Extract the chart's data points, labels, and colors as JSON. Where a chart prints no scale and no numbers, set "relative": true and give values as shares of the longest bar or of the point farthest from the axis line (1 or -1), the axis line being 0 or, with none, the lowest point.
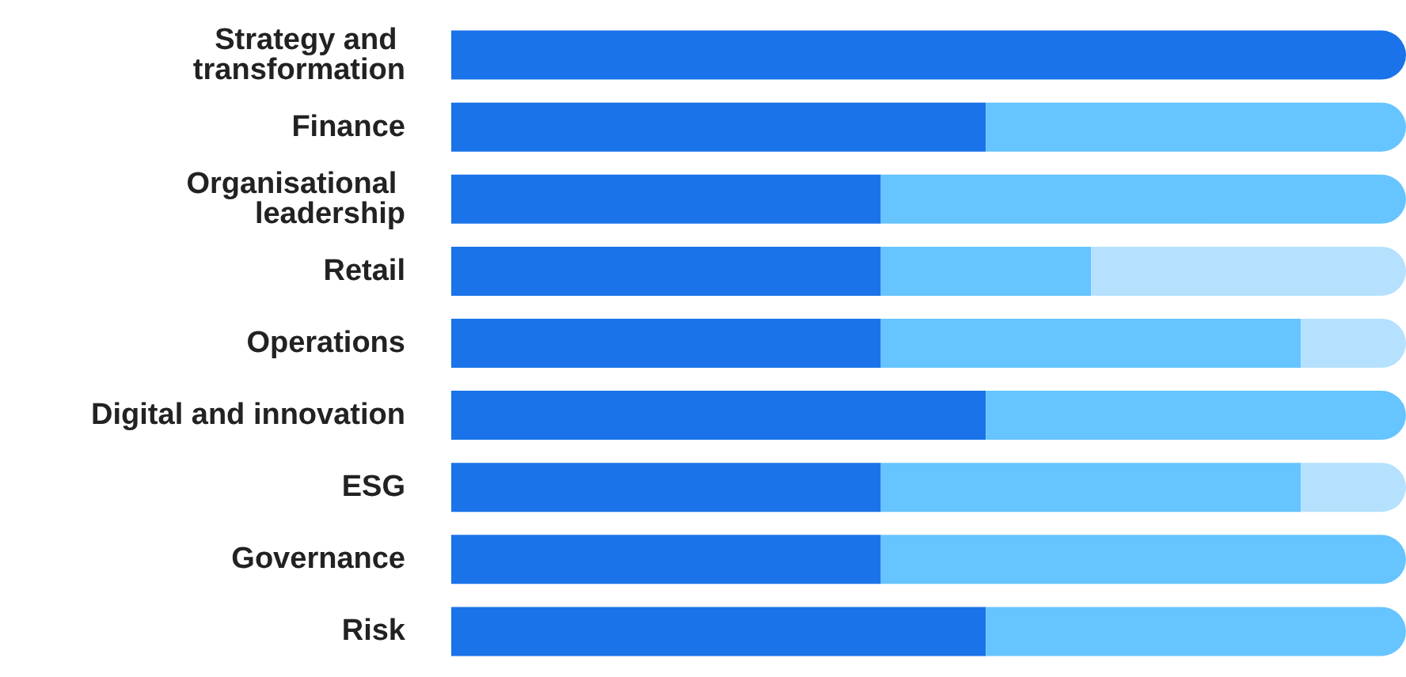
{
  "chart_data": {
    "type": "bar",
    "orientation": "horizontal",
    "stacked": true,
    "relative": true,
    "categories": [
      "Strategy and transformation",
      "Finance",
      "Organisational leadership",
      "Retail",
      "Operations",
      "Digital and innovation",
      "ESG",
      "Governance",
      "Risk"
    ],
    "series": [
      {
        "color": "#1a73e8",
        "values": [
          1,
          0.56,
          0.45,
          0.45,
          0.45,
          0.56,
          0.45,
          0.45,
          0.56
        ]
      },
      {
        "color": "#66c4ff",
        "values": [
          null,
          0.44,
          0.55,
          0.22,
          0.44,
          0.44,
          0.44,
          0.55,
          0.44
        ]
      },
      {
        "color": "#b5e1ff",
        "values": [
          null,
          null,
          null,
          0.33,
          0.11,
          null,
          0.11,
          null,
          null
        ]
      }
    ]
  }
}
